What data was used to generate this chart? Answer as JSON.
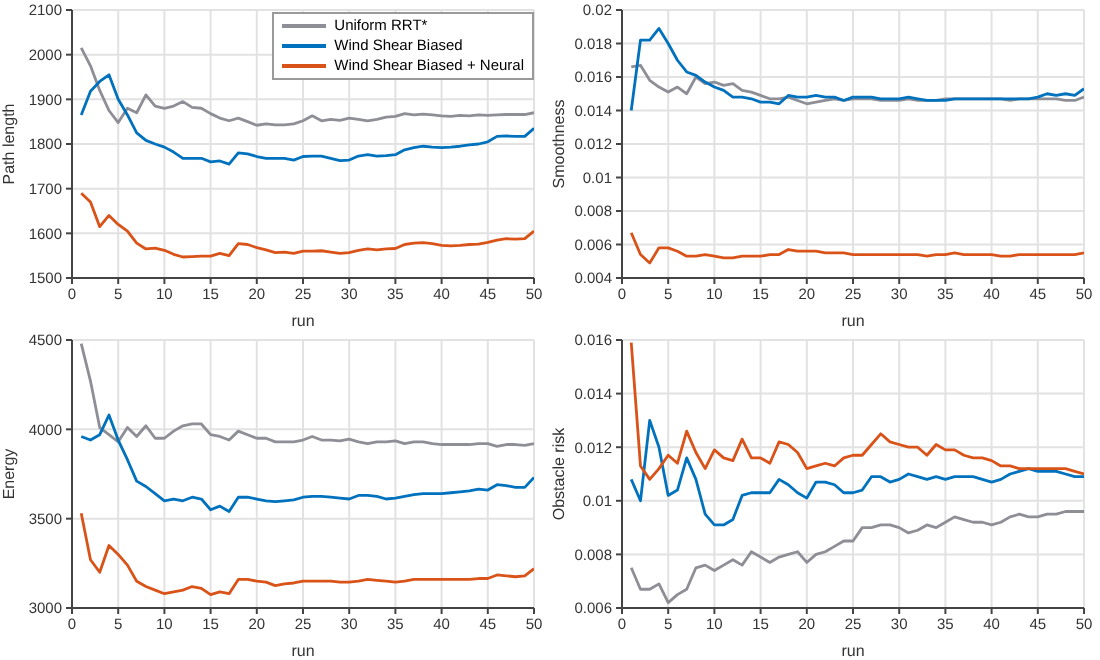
{
  "chart_data": [
    {
      "type": "line",
      "xlabel": "run",
      "ylabel": "Path length",
      "x": [
        1,
        2,
        3,
        4,
        5,
        6,
        7,
        8,
        9,
        10,
        11,
        12,
        13,
        14,
        15,
        16,
        17,
        18,
        19,
        20,
        21,
        22,
        23,
        24,
        25,
        26,
        27,
        28,
        29,
        30,
        31,
        32,
        33,
        34,
        35,
        36,
        37,
        38,
        39,
        40,
        41,
        42,
        43,
        44,
        45,
        46,
        47,
        48,
        49,
        50
      ],
      "xlim": [
        0,
        50
      ],
      "xticks": [
        0,
        5,
        10,
        15,
        20,
        25,
        30,
        35,
        40,
        45,
        50
      ],
      "ylim": [
        1500,
        2100
      ],
      "yticks": [
        1500,
        1600,
        1700,
        1800,
        1900,
        2000,
        2100
      ],
      "grid": true,
      "legend": "top right",
      "series": [
        {
          "name": "Uniform RRT*",
          "color": "#8e8e96",
          "values": [
            2015,
            1975,
            1920,
            1875,
            1848,
            1880,
            1870,
            1910,
            1885,
            1880,
            1885,
            1895,
            1882,
            1880,
            1868,
            1858,
            1852,
            1858,
            1850,
            1842,
            1845,
            1843,
            1843,
            1845,
            1852,
            1863,
            1852,
            1855,
            1853,
            1858,
            1855,
            1852,
            1855,
            1860,
            1862,
            1868,
            1865,
            1867,
            1865,
            1863,
            1862,
            1864,
            1863,
            1865,
            1864,
            1865,
            1866,
            1866,
            1866,
            1870
          ]
        },
        {
          "name": "Wind Shear Biased",
          "color": "#0072bd",
          "values": [
            1865,
            1918,
            1940,
            1955,
            1900,
            1865,
            1825,
            1808,
            1800,
            1793,
            1782,
            1768,
            1768,
            1768,
            1760,
            1762,
            1755,
            1780,
            1778,
            1772,
            1768,
            1768,
            1768,
            1764,
            1772,
            1773,
            1773,
            1768,
            1763,
            1764,
            1773,
            1776,
            1773,
            1774,
            1776,
            1787,
            1792,
            1795,
            1793,
            1792,
            1793,
            1795,
            1798,
            1800,
            1805,
            1817,
            1818,
            1817,
            1817,
            1835
          ]
        },
        {
          "name": "Wind Shear Biased + Neural",
          "color": "#d95319",
          "values": [
            1690,
            1670,
            1615,
            1640,
            1620,
            1605,
            1578,
            1565,
            1567,
            1562,
            1553,
            1547,
            1548,
            1549,
            1549,
            1555,
            1550,
            1577,
            1575,
            1568,
            1563,
            1557,
            1558,
            1555,
            1560,
            1560,
            1561,
            1558,
            1555,
            1557,
            1562,
            1565,
            1563,
            1565,
            1566,
            1575,
            1578,
            1579,
            1577,
            1573,
            1572,
            1573,
            1575,
            1576,
            1580,
            1585,
            1588,
            1587,
            1588,
            1605
          ]
        }
      ]
    },
    {
      "type": "line",
      "xlabel": "run",
      "ylabel": "Smoothness",
      "x": [
        1,
        2,
        3,
        4,
        5,
        6,
        7,
        8,
        9,
        10,
        11,
        12,
        13,
        14,
        15,
        16,
        17,
        18,
        19,
        20,
        21,
        22,
        23,
        24,
        25,
        26,
        27,
        28,
        29,
        30,
        31,
        32,
        33,
        34,
        35,
        36,
        37,
        38,
        39,
        40,
        41,
        42,
        43,
        44,
        45,
        46,
        47,
        48,
        49,
        50
      ],
      "xlim": [
        0,
        50
      ],
      "xticks": [
        0,
        5,
        10,
        15,
        20,
        25,
        30,
        35,
        40,
        45,
        50
      ],
      "ylim": [
        0.004,
        0.02
      ],
      "yticks": [
        0.004,
        0.006,
        0.008,
        0.01,
        0.012,
        0.014,
        0.016,
        0.018,
        0.02
      ],
      "grid": true,
      "series": [
        {
          "color": "#8e8e96",
          "values": [
            0.0166,
            0.0167,
            0.0158,
            0.0154,
            0.0151,
            0.0154,
            0.015,
            0.016,
            0.0156,
            0.0157,
            0.0155,
            0.0156,
            0.0152,
            0.0151,
            0.0149,
            0.0147,
            0.0147,
            0.0148,
            0.0146,
            0.0144,
            0.0145,
            0.0146,
            0.0147,
            0.0146,
            0.0147,
            0.0147,
            0.0147,
            0.0146,
            0.0146,
            0.0146,
            0.0147,
            0.0146,
            0.0146,
            0.0146,
            0.0147,
            0.0147,
            0.0147,
            0.0147,
            0.0147,
            0.0147,
            0.0147,
            0.0146,
            0.0147,
            0.0147,
            0.0147,
            0.0147,
            0.0147,
            0.0146,
            0.0146,
            0.0148
          ]
        },
        {
          "color": "#0072bd",
          "values": [
            0.014,
            0.0182,
            0.0182,
            0.0189,
            0.018,
            0.017,
            0.0163,
            0.0161,
            0.0157,
            0.0154,
            0.0152,
            0.0148,
            0.0148,
            0.0147,
            0.0145,
            0.0145,
            0.0144,
            0.0149,
            0.0148,
            0.0148,
            0.0149,
            0.0148,
            0.0148,
            0.0146,
            0.0148,
            0.0148,
            0.0148,
            0.0147,
            0.0147,
            0.0147,
            0.0148,
            0.0147,
            0.0146,
            0.0146,
            0.0146,
            0.0147,
            0.0147,
            0.0147,
            0.0147,
            0.0147,
            0.0147,
            0.0147,
            0.0147,
            0.0147,
            0.0148,
            0.015,
            0.0149,
            0.015,
            0.0149,
            0.0153
          ]
        },
        {
          "color": "#d95319",
          "values": [
            0.0067,
            0.0054,
            0.0049,
            0.0058,
            0.0058,
            0.0056,
            0.0053,
            0.0053,
            0.0054,
            0.0053,
            0.0052,
            0.0052,
            0.0053,
            0.0053,
            0.0053,
            0.0054,
            0.0054,
            0.0057,
            0.0056,
            0.0056,
            0.0056,
            0.0055,
            0.0055,
            0.0055,
            0.0054,
            0.0054,
            0.0054,
            0.0054,
            0.0054,
            0.0054,
            0.0054,
            0.0054,
            0.0053,
            0.0054,
            0.0054,
            0.0055,
            0.0054,
            0.0054,
            0.0054,
            0.0054,
            0.0053,
            0.0053,
            0.0054,
            0.0054,
            0.0054,
            0.0054,
            0.0054,
            0.0054,
            0.0054,
            0.0055
          ]
        }
      ]
    },
    {
      "type": "line",
      "xlabel": "run",
      "ylabel": "Energy",
      "x": [
        1,
        2,
        3,
        4,
        5,
        6,
        7,
        8,
        9,
        10,
        11,
        12,
        13,
        14,
        15,
        16,
        17,
        18,
        19,
        20,
        21,
        22,
        23,
        24,
        25,
        26,
        27,
        28,
        29,
        30,
        31,
        32,
        33,
        34,
        35,
        36,
        37,
        38,
        39,
        40,
        41,
        42,
        43,
        44,
        45,
        46,
        47,
        48,
        49,
        50
      ],
      "xlim": [
        0,
        50
      ],
      "xticks": [
        0,
        5,
        10,
        15,
        20,
        25,
        30,
        35,
        40,
        45,
        50
      ],
      "ylim": [
        3000,
        4500
      ],
      "yticks": [
        3000,
        3500,
        4000,
        4500
      ],
      "grid": true,
      "series": [
        {
          "color": "#8e8e96",
          "values": [
            4480,
            4270,
            4010,
            3970,
            3930,
            4010,
            3960,
            4020,
            3950,
            3950,
            3990,
            4020,
            4030,
            4030,
            3970,
            3960,
            3940,
            3990,
            3970,
            3950,
            3950,
            3930,
            3930,
            3930,
            3940,
            3960,
            3940,
            3940,
            3935,
            3945,
            3930,
            3920,
            3930,
            3930,
            3935,
            3920,
            3930,
            3930,
            3920,
            3915,
            3915,
            3915,
            3915,
            3920,
            3920,
            3905,
            3915,
            3915,
            3910,
            3920
          ]
        },
        {
          "color": "#0072bd",
          "values": [
            3960,
            3940,
            3970,
            4080,
            3940,
            3830,
            3710,
            3680,
            3640,
            3600,
            3610,
            3600,
            3620,
            3610,
            3550,
            3570,
            3540,
            3620,
            3620,
            3610,
            3600,
            3595,
            3600,
            3605,
            3620,
            3625,
            3625,
            3620,
            3615,
            3610,
            3630,
            3630,
            3625,
            3610,
            3615,
            3625,
            3635,
            3640,
            3640,
            3640,
            3645,
            3650,
            3655,
            3665,
            3660,
            3690,
            3685,
            3675,
            3675,
            3730
          ]
        },
        {
          "color": "#d95319",
          "values": [
            3530,
            3270,
            3200,
            3350,
            3300,
            3240,
            3150,
            3120,
            3100,
            3080,
            3090,
            3100,
            3120,
            3110,
            3075,
            3090,
            3080,
            3160,
            3160,
            3150,
            3145,
            3125,
            3135,
            3140,
            3150,
            3150,
            3150,
            3150,
            3145,
            3145,
            3150,
            3160,
            3155,
            3150,
            3145,
            3150,
            3160,
            3160,
            3160,
            3160,
            3160,
            3160,
            3160,
            3165,
            3165,
            3185,
            3180,
            3175,
            3180,
            3220
          ]
        }
      ]
    },
    {
      "type": "line",
      "xlabel": "run",
      "ylabel": "Obstacle risk",
      "x": [
        1,
        2,
        3,
        4,
        5,
        6,
        7,
        8,
        9,
        10,
        11,
        12,
        13,
        14,
        15,
        16,
        17,
        18,
        19,
        20,
        21,
        22,
        23,
        24,
        25,
        26,
        27,
        28,
        29,
        30,
        31,
        32,
        33,
        34,
        35,
        36,
        37,
        38,
        39,
        40,
        41,
        42,
        43,
        44,
        45,
        46,
        47,
        48,
        49,
        50
      ],
      "xlim": [
        0,
        50
      ],
      "xticks": [
        0,
        5,
        10,
        15,
        20,
        25,
        30,
        35,
        40,
        45,
        50
      ],
      "ylim": [
        0.006,
        0.016
      ],
      "yticks": [
        0.006,
        0.008,
        0.01,
        0.012,
        0.014,
        0.016
      ],
      "grid": true,
      "series": [
        {
          "color": "#8e8e96",
          "values": [
            0.0075,
            0.0067,
            0.0067,
            0.0069,
            0.0062,
            0.0065,
            0.0067,
            0.0075,
            0.0076,
            0.0074,
            0.0076,
            0.0078,
            0.0076,
            0.0081,
            0.0079,
            0.0077,
            0.0079,
            0.008,
            0.0081,
            0.0077,
            0.008,
            0.0081,
            0.0083,
            0.0085,
            0.0085,
            0.009,
            0.009,
            0.0091,
            0.0091,
            0.009,
            0.0088,
            0.0089,
            0.0091,
            0.009,
            0.0092,
            0.0094,
            0.0093,
            0.0092,
            0.0092,
            0.0091,
            0.0092,
            0.0094,
            0.0095,
            0.0094,
            0.0094,
            0.0095,
            0.0095,
            0.0096,
            0.0096,
            0.0096
          ]
        },
        {
          "color": "#0072bd",
          "values": [
            0.0108,
            0.01,
            0.013,
            0.012,
            0.0102,
            0.0104,
            0.0116,
            0.0108,
            0.0095,
            0.0091,
            0.0091,
            0.0093,
            0.0102,
            0.0103,
            0.0103,
            0.0103,
            0.0108,
            0.0106,
            0.0103,
            0.0101,
            0.0107,
            0.0107,
            0.0106,
            0.0103,
            0.0103,
            0.0104,
            0.0109,
            0.0109,
            0.0107,
            0.0108,
            0.011,
            0.0109,
            0.0108,
            0.0109,
            0.0108,
            0.0109,
            0.0109,
            0.0109,
            0.0108,
            0.0107,
            0.0108,
            0.011,
            0.0111,
            0.0112,
            0.0111,
            0.0111,
            0.0111,
            0.011,
            0.0109,
            0.0109
          ]
        },
        {
          "color": "#d95319",
          "values": [
            0.0159,
            0.0113,
            0.0108,
            0.0112,
            0.0117,
            0.0114,
            0.0126,
            0.0118,
            0.0112,
            0.0119,
            0.0116,
            0.0115,
            0.0123,
            0.0116,
            0.0116,
            0.0114,
            0.0122,
            0.0121,
            0.0118,
            0.0112,
            0.0113,
            0.0114,
            0.0113,
            0.0116,
            0.0117,
            0.0117,
            0.0121,
            0.0125,
            0.0122,
            0.0121,
            0.012,
            0.012,
            0.0117,
            0.0121,
            0.0119,
            0.0119,
            0.0117,
            0.0116,
            0.0116,
            0.0115,
            0.0113,
            0.0113,
            0.0112,
            0.0112,
            0.0112,
            0.0112,
            0.0112,
            0.0112,
            0.0111,
            0.011
          ]
        }
      ]
    }
  ]
}
